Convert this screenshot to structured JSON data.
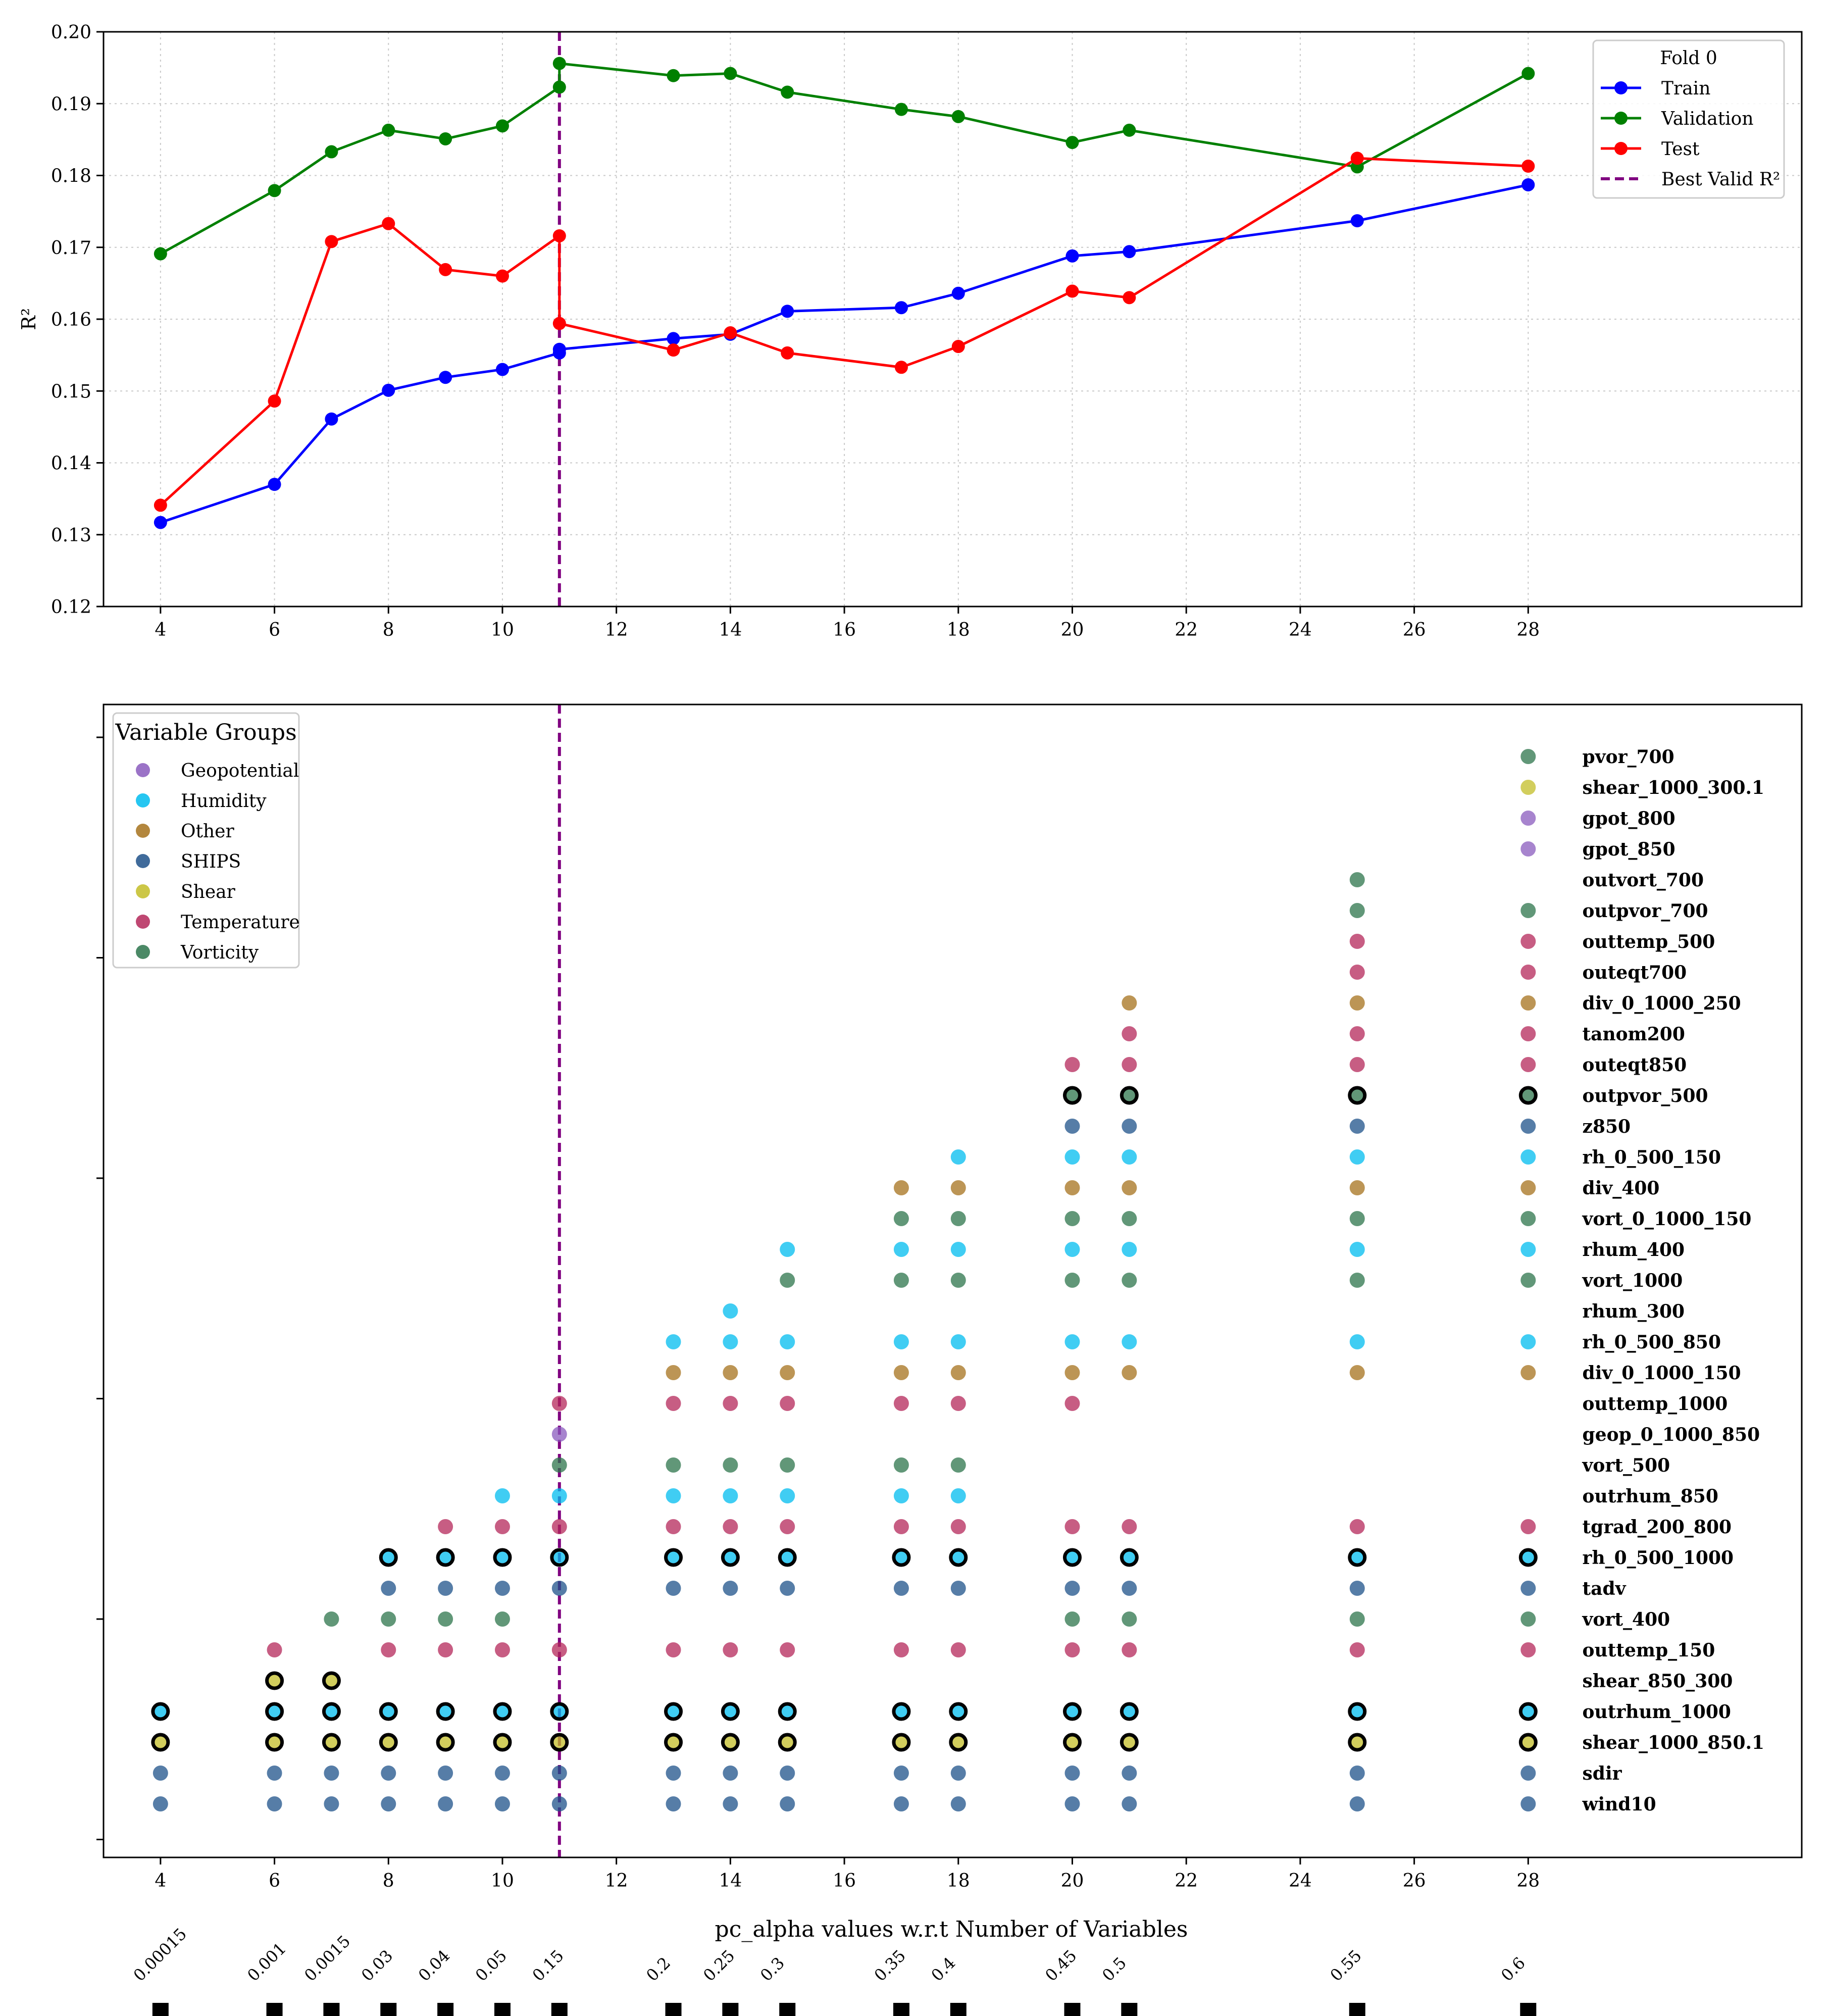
{
  "chart_data": [
    {
      "type": "line",
      "title": "",
      "xlabel": "",
      "ylabel": "R²",
      "xlim": [
        3,
        32.8
      ],
      "ylim": [
        0.12,
        0.2
      ],
      "xticks": [
        4,
        6,
        8,
        10,
        12,
        14,
        16,
        18,
        20,
        22,
        24,
        26,
        28
      ],
      "yticks": [
        0.12,
        0.13,
        0.14,
        0.15,
        0.16,
        0.17,
        0.18,
        0.19,
        0.2
      ],
      "grid": true,
      "legend_title": "Fold 0",
      "legend_position": "top-right",
      "x": [
        4,
        6,
        7,
        8,
        9,
        10,
        11,
        11,
        13,
        14,
        15,
        17,
        18,
        20,
        21,
        25,
        28
      ],
      "series": [
        {
          "name": "Train",
          "color": "#0000ff",
          "values": [
            0.1317,
            0.137,
            0.1461,
            0.1501,
            0.1519,
            0.153,
            0.1553,
            0.1558,
            0.1573,
            0.1579,
            0.1611,
            0.1616,
            0.1636,
            0.1688,
            0.1694,
            0.1737,
            0.1787
          ]
        },
        {
          "name": "Validation",
          "color": "#008000",
          "values": [
            0.1691,
            0.1779,
            0.1833,
            0.1863,
            0.1851,
            0.1869,
            0.1923,
            0.1956,
            0.1939,
            0.1942,
            0.1916,
            0.1892,
            0.1882,
            0.1846,
            0.1863,
            0.1812,
            0.1942
          ]
        },
        {
          "name": "Test",
          "color": "#ff0000",
          "values": [
            0.1341,
            0.1486,
            0.1708,
            0.1733,
            0.1669,
            0.166,
            0.1716,
            0.1594,
            0.1557,
            0.1581,
            0.1553,
            0.1533,
            0.1562,
            0.1639,
            0.163,
            0.1824,
            0.1813
          ]
        }
      ],
      "vline": {
        "x": 11,
        "name": "Best Valid R²",
        "color": "#800080"
      }
    },
    {
      "type": "scatter",
      "xlabel": "pc_alpha values w.r.t Number of Variables",
      "xlim": [
        3,
        32.8
      ],
      "xticks": [
        4,
        6,
        8,
        10,
        12,
        14,
        16,
        18,
        20,
        22,
        24,
        26,
        28
      ],
      "vline_x": 11,
      "legend_title": "Variable Groups",
      "legend_position": "top-left",
      "groups": [
        {
          "name": "Geopotential",
          "color": "#8a5bbd"
        },
        {
          "name": "Humidity",
          "color": "#00bcef"
        },
        {
          "name": "Other",
          "color": "#a6721c"
        },
        {
          "name": "SHIPS",
          "color": "#1e5189"
        },
        {
          "name": "Shear",
          "color": "#c3bd27"
        },
        {
          "name": "Temperature",
          "color": "#b42759"
        },
        {
          "name": "Vorticity",
          "color": "#2c744b"
        }
      ],
      "variables": [
        {
          "name": "pvor_700",
          "group": "Vorticity",
          "x": [
            28
          ]
        },
        {
          "name": "shear_1000_300.1",
          "group": "Shear",
          "x": [
            28
          ]
        },
        {
          "name": "gpot_800",
          "group": "Geopotential",
          "x": [
            28
          ]
        },
        {
          "name": "gpot_850",
          "group": "Geopotential",
          "x": [
            28
          ]
        },
        {
          "name": "outvort_700",
          "group": "Vorticity",
          "x": [
            25
          ]
        },
        {
          "name": "outpvor_700",
          "group": "Vorticity",
          "x": [
            25,
            28
          ]
        },
        {
          "name": "outtemp_500",
          "group": "Temperature",
          "x": [
            25,
            28
          ]
        },
        {
          "name": "outeqt700",
          "group": "Temperature",
          "x": [
            25,
            28
          ]
        },
        {
          "name": "div_0_1000_250",
          "group": "Other",
          "x": [
            21,
            25,
            28
          ]
        },
        {
          "name": "tanom200",
          "group": "Temperature",
          "x": [
            21,
            25,
            28
          ]
        },
        {
          "name": "outeqt850",
          "group": "Temperature",
          "x": [
            20,
            21,
            25,
            28
          ]
        },
        {
          "name": "outpvor_500",
          "group": "Vorticity",
          "x": [
            20,
            21,
            25,
            28
          ],
          "outlined": true
        },
        {
          "name": "z850",
          "group": "SHIPS",
          "x": [
            20,
            21,
            25,
            28
          ]
        },
        {
          "name": "rh_0_500_150",
          "group": "Humidity",
          "x": [
            18,
            20,
            21,
            25,
            28
          ]
        },
        {
          "name": "div_400",
          "group": "Other",
          "x": [
            17,
            18,
            20,
            21,
            25,
            28
          ]
        },
        {
          "name": "vort_0_1000_150",
          "group": "Vorticity",
          "x": [
            17,
            18,
            20,
            21,
            25,
            28
          ]
        },
        {
          "name": "rhum_400",
          "group": "Humidity",
          "x": [
            15,
            17,
            18,
            20,
            21,
            25,
            28
          ]
        },
        {
          "name": "vort_1000",
          "group": "Vorticity",
          "x": [
            15,
            17,
            18,
            20,
            21,
            25,
            28
          ]
        },
        {
          "name": "rhum_300",
          "group": "Humidity",
          "x": [
            14
          ]
        },
        {
          "name": "rh_0_500_850",
          "group": "Humidity",
          "x": [
            13,
            14,
            15,
            17,
            18,
            20,
            21,
            25,
            28
          ]
        },
        {
          "name": "div_0_1000_150",
          "group": "Other",
          "x": [
            13,
            14,
            15,
            17,
            18,
            20,
            21,
            25,
            28
          ]
        },
        {
          "name": "outtemp_1000",
          "group": "Temperature",
          "x": [
            11,
            13,
            14,
            15,
            17,
            18,
            20
          ]
        },
        {
          "name": "geop_0_1000_850",
          "group": "Geopotential",
          "x": [
            11
          ]
        },
        {
          "name": "vort_500",
          "group": "Vorticity",
          "x": [
            11,
            13,
            14,
            15,
            17,
            18
          ]
        },
        {
          "name": "outrhum_850",
          "group": "Humidity",
          "x": [
            10,
            11,
            13,
            14,
            15,
            17,
            18
          ]
        },
        {
          "name": "tgrad_200_800",
          "group": "Temperature",
          "x": [
            9,
            10,
            11,
            13,
            14,
            15,
            17,
            18,
            20,
            21,
            25,
            28
          ]
        },
        {
          "name": "rh_0_500_1000",
          "group": "Humidity",
          "x": [
            8,
            9,
            10,
            11,
            13,
            14,
            15,
            17,
            18,
            20,
            21,
            25,
            28
          ],
          "outlined": true
        },
        {
          "name": "tadv",
          "group": "SHIPS",
          "x": [
            8,
            9,
            10,
            11,
            13,
            14,
            15,
            17,
            18,
            20,
            21,
            25,
            28
          ]
        },
        {
          "name": "vort_400",
          "group": "Vorticity",
          "x": [
            7,
            8,
            9,
            10,
            20,
            21,
            25,
            28
          ]
        },
        {
          "name": "outtemp_150",
          "group": "Temperature",
          "x": [
            6,
            8,
            9,
            10,
            11,
            13,
            14,
            15,
            17,
            18,
            20,
            21,
            25,
            28
          ]
        },
        {
          "name": "shear_850_300",
          "group": "Shear",
          "x": [
            6,
            7
          ],
          "outlined": true
        },
        {
          "name": "outrhum_1000",
          "group": "Humidity",
          "x": [
            4,
            6,
            7,
            8,
            9,
            10,
            11,
            13,
            14,
            15,
            17,
            18,
            20,
            21,
            25,
            28
          ],
          "outlined": true
        },
        {
          "name": "shear_1000_850.1",
          "group": "Shear",
          "x": [
            4,
            6,
            7,
            8,
            9,
            10,
            11,
            13,
            14,
            15,
            17,
            18,
            20,
            21,
            25,
            28
          ],
          "outlined": true
        },
        {
          "name": "sdir",
          "group": "SHIPS",
          "x": [
            4,
            6,
            7,
            8,
            9,
            10,
            11,
            13,
            14,
            15,
            17,
            18,
            20,
            21,
            25,
            28
          ]
        },
        {
          "name": "wind10",
          "group": "SHIPS",
          "x": [
            4,
            6,
            7,
            8,
            9,
            10,
            11,
            13,
            14,
            15,
            17,
            18,
            20,
            21,
            25,
            28
          ]
        }
      ],
      "pc_alpha": [
        {
          "n": 4,
          "alpha": "0.00015"
        },
        {
          "n": 6,
          "alpha": "0.001"
        },
        {
          "n": 7,
          "alpha": "0.0015"
        },
        {
          "n": 8,
          "alpha": "0.03"
        },
        {
          "n": 9,
          "alpha": "0.04"
        },
        {
          "n": 10,
          "alpha": "0.05"
        },
        {
          "n": 11,
          "alpha": "0.15"
        },
        {
          "n": 13,
          "alpha": "0.2"
        },
        {
          "n": 14,
          "alpha": "0.25"
        },
        {
          "n": 15,
          "alpha": "0.3"
        },
        {
          "n": 17,
          "alpha": "0.35"
        },
        {
          "n": 18,
          "alpha": "0.4"
        },
        {
          "n": 20,
          "alpha": "0.45"
        },
        {
          "n": 21,
          "alpha": "0.5"
        },
        {
          "n": 25,
          "alpha": "0.55"
        },
        {
          "n": 28,
          "alpha": "0.6"
        }
      ]
    }
  ]
}
